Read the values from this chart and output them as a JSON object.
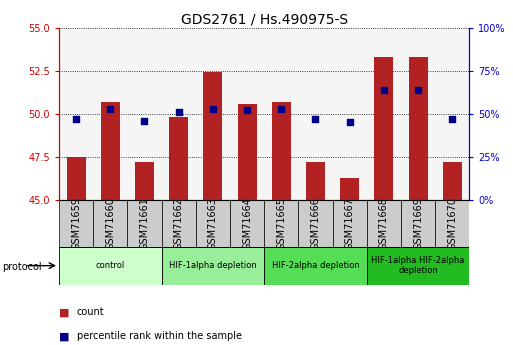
{
  "title": "GDS2761 / Hs.490975-S",
  "samples": [
    "GSM71659",
    "GSM71660",
    "GSM71661",
    "GSM71662",
    "GSM71663",
    "GSM71664",
    "GSM71665",
    "GSM71666",
    "GSM71667",
    "GSM71668",
    "GSM71669",
    "GSM71670"
  ],
  "counts": [
    47.5,
    50.7,
    47.2,
    49.8,
    52.4,
    50.6,
    50.7,
    47.2,
    46.3,
    53.3,
    53.3,
    47.2
  ],
  "percentiles_pct": [
    47,
    53,
    46,
    51,
    53,
    52,
    53,
    47,
    45,
    64,
    64,
    47
  ],
  "ylim_left": [
    45,
    55
  ],
  "ylim_right": [
    0,
    100
  ],
  "yticks_left": [
    45,
    47.5,
    50,
    52.5,
    55
  ],
  "yticks_right": [
    0,
    25,
    50,
    75,
    100
  ],
  "bar_color": "#b22222",
  "dot_color": "#00008b",
  "bar_base": 45,
  "groups": [
    {
      "label": "control",
      "start": 0,
      "end": 3,
      "color": "#ccffcc"
    },
    {
      "label": "HIF-1alpha depletion",
      "start": 3,
      "end": 6,
      "color": "#99ee99"
    },
    {
      "label": "HIF-2alpha depletion",
      "start": 6,
      "end": 9,
      "color": "#55dd55"
    },
    {
      "label": "HIF-1alpha HIF-2alpha\ndepletion",
      "start": 9,
      "end": 12,
      "color": "#22bb22"
    }
  ],
  "left_axis_color": "#cc0000",
  "right_axis_color": "#0000cc",
  "title_fontsize": 10,
  "tick_fontsize": 7,
  "bar_width": 0.55,
  "plot_bg": "#f5f5f5",
  "xlabel_bg": "#cccccc"
}
